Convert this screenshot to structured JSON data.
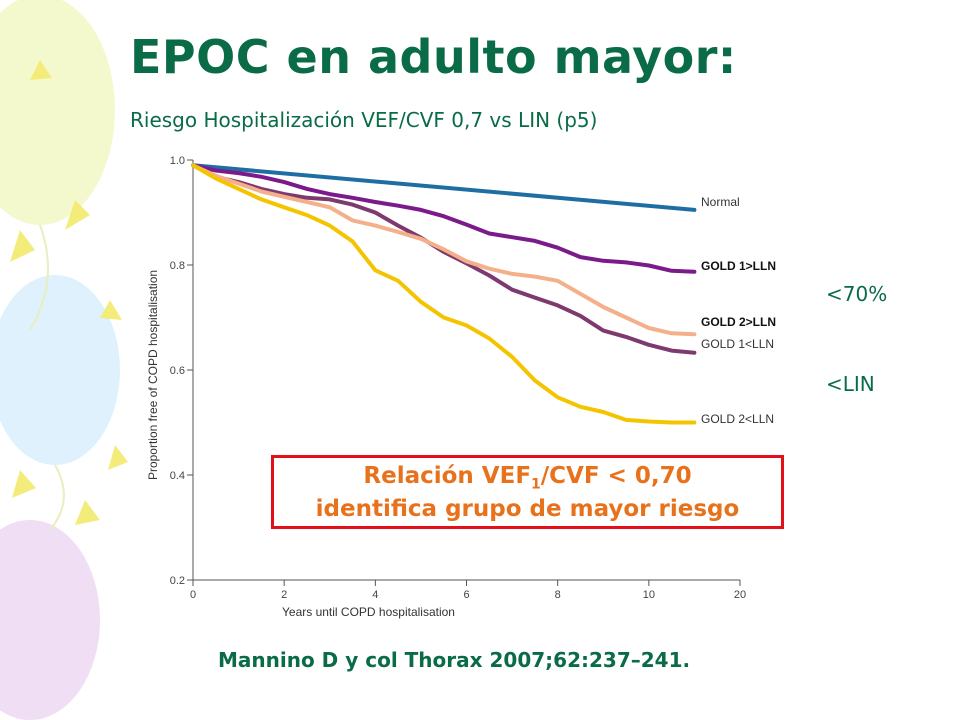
{
  "slide": {
    "title": "EPOC en adulto mayor:",
    "subtitle": "Riesgo Hospitalización VEF/CVF 0,7 vs LIN (p5)",
    "side_labels": {
      "upper": "<70%",
      "lower": "<LIN"
    },
    "callout": {
      "line1_prefix": "Relación VEF",
      "line1_sub": "1",
      "line1_suffix": "/CVF < 0,70",
      "line2": "identifica grupo de mayor riesgo",
      "border_color": "#e3101a",
      "text_color": "#e8721c"
    },
    "citation": "Mannino D y col Thorax 2007;62:237–241.",
    "accent_color": "#0a6b47"
  },
  "chart_data": {
    "type": "line",
    "title": "",
    "xlabel": "Years until COPD hospitalisation",
    "ylabel": "Proportion free of COPD hospitalisation",
    "x_ticks": [
      0,
      2,
      4,
      6,
      8,
      10,
      20
    ],
    "y_ticks": [
      "0.2",
      "0.4",
      "0.6",
      "0.8",
      "1.0"
    ],
    "ylim": [
      0.2,
      1.0
    ],
    "grid": false,
    "legend": "inline labels at line ends",
    "series": [
      {
        "name": "Normal",
        "color": "#1f6ea3",
        "bold_label": false,
        "x": [
          0,
          11
        ],
        "y": [
          0.99,
          0.905
        ]
      },
      {
        "name": "GOLD 1>LLN",
        "color": "#7b1a8a",
        "bold_label": true,
        "x": [
          0,
          0.5,
          1,
          1.5,
          2,
          2.5,
          3,
          3.5,
          4,
          4.5,
          5,
          5.5,
          6,
          6.5,
          7,
          7.5,
          8,
          8.5,
          9,
          9.5,
          10,
          10.5,
          11
        ],
        "y": [
          0.99,
          0.98,
          0.975,
          0.968,
          0.958,
          0.945,
          0.935,
          0.928,
          0.92,
          0.913,
          0.905,
          0.893,
          0.877,
          0.86,
          0.853,
          0.846,
          0.833,
          0.815,
          0.808,
          0.805,
          0.799,
          0.789,
          0.787
        ]
      },
      {
        "name": "GOLD 2>LLN",
        "color": "#7e3a6e",
        "bold_label": true,
        "x": [
          0,
          0.5,
          1,
          1.5,
          2,
          2.5,
          3,
          3.5,
          4,
          4.5,
          5,
          5.5,
          6,
          6.5,
          7,
          7.5,
          8,
          8.5,
          9,
          9.5,
          10,
          10.5,
          11
        ],
        "y": [
          0.99,
          0.968,
          0.958,
          0.945,
          0.935,
          0.928,
          0.925,
          0.915,
          0.9,
          0.875,
          0.852,
          0.825,
          0.803,
          0.78,
          0.753,
          0.738,
          0.723,
          0.703,
          0.675,
          0.663,
          0.648,
          0.637,
          0.633
        ]
      },
      {
        "name": "GOLD 1<LLN",
        "color": "#f4b08a",
        "bold_label": false,
        "x": [
          0,
          0.5,
          1,
          1.5,
          2,
          2.5,
          3,
          3.5,
          4,
          4.5,
          5,
          5.5,
          6,
          6.5,
          7,
          7.5,
          8,
          8.5,
          9,
          9.5,
          10,
          10.5,
          11
        ],
        "y": [
          0.99,
          0.97,
          0.955,
          0.94,
          0.93,
          0.92,
          0.91,
          0.885,
          0.875,
          0.863,
          0.85,
          0.83,
          0.807,
          0.793,
          0.783,
          0.778,
          0.77,
          0.745,
          0.72,
          0.7,
          0.68,
          0.67,
          0.668
        ]
      },
      {
        "name": "GOLD 2<LLN",
        "color": "#f5c400",
        "bold_label": false,
        "x": [
          0,
          0.5,
          1,
          1.5,
          2,
          2.5,
          3,
          3.5,
          4,
          4.5,
          5,
          5.5,
          6,
          6.5,
          7,
          7.5,
          8,
          8.5,
          9,
          9.5,
          10,
          10.5,
          11
        ],
        "y": [
          0.99,
          0.965,
          0.945,
          0.925,
          0.91,
          0.895,
          0.875,
          0.845,
          0.79,
          0.77,
          0.73,
          0.7,
          0.685,
          0.66,
          0.625,
          0.58,
          0.548,
          0.53,
          0.52,
          0.505,
          0.502,
          0.5,
          0.5
        ]
      }
    ]
  }
}
